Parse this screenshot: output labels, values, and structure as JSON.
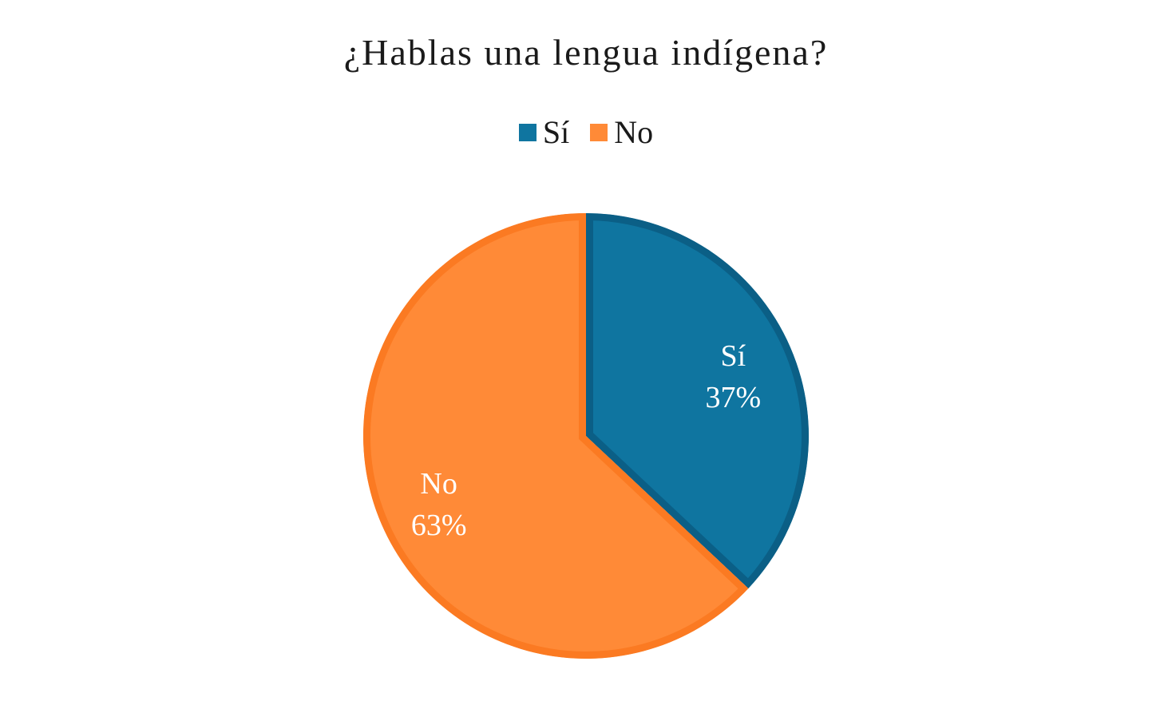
{
  "chart_data": {
    "type": "pie",
    "title": "¿Hablas una lengua indígena?",
    "legend_position": "top",
    "slices": [
      {
        "label": "Sí",
        "value": 37,
        "value_label": "37%",
        "color": "#0f75a0",
        "border_color": "#0b5f86"
      },
      {
        "label": "No",
        "value": 63,
        "value_label": "63%",
        "color": "#ff8a37",
        "border_color": "#fb7a22"
      }
    ]
  }
}
